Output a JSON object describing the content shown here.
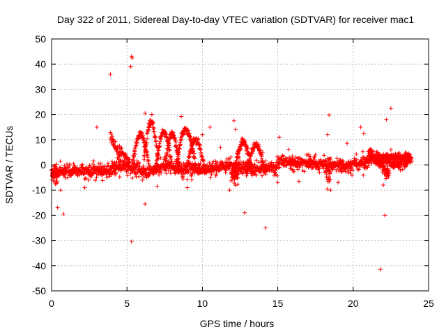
{
  "chart_data": {
    "type": "scatter",
    "title": "Day 322 of 2011, Sidereal Day-to-day VTEC variation (SDTVAR) for receiver mac1",
    "xlabel": "GPS time / hours",
    "ylabel": "SDTVAR / TECUs",
    "xlim": [
      0,
      25
    ],
    "ylim": [
      -50,
      50
    ],
    "xticks": [
      0,
      5,
      10,
      15,
      20,
      25
    ],
    "yticks": [
      -50,
      -40,
      -30,
      -20,
      -10,
      0,
      10,
      20,
      30,
      40,
      50
    ],
    "grid": true,
    "marker": "plus",
    "color": "#ff0000",
    "outlier_points": [
      [
        5.3,
        43
      ],
      [
        5.35,
        42.5
      ],
      [
        5.25,
        39
      ],
      [
        3.9,
        36
      ],
      [
        3.0,
        15
      ],
      [
        6.2,
        20.5
      ],
      [
        6.65,
        20
      ],
      [
        8.6,
        19.2
      ],
      [
        10.5,
        15
      ],
      [
        12.1,
        17.5
      ],
      [
        12.2,
        14
      ],
      [
        15.1,
        11
      ],
      [
        16.4,
        -6.5
      ],
      [
        18.4,
        19.8
      ],
      [
        18.3,
        12
      ],
      [
        20.5,
        15
      ],
      [
        20.7,
        12.5
      ],
      [
        22.5,
        22.5
      ],
      [
        22.2,
        18
      ],
      [
        22.5,
        6
      ],
      [
        0.4,
        -17
      ],
      [
        0.8,
        -19.5
      ],
      [
        5.3,
        -30.5
      ],
      [
        6.2,
        -15.5
      ],
      [
        12.8,
        -19
      ],
      [
        14.2,
        -25
      ],
      [
        21.8,
        -41.5
      ],
      [
        22.1,
        -20
      ],
      [
        22.0,
        -8
      ],
      [
        0.6,
        -10
      ],
      [
        7.0,
        -8.5
      ],
      [
        11.8,
        -10
      ],
      [
        9.0,
        -9
      ],
      [
        18.5,
        -10
      ],
      [
        19.0,
        -7
      ],
      [
        2.2,
        -9
      ],
      [
        15.0,
        -7
      ],
      [
        17.5,
        4
      ],
      [
        19.6,
        8.5
      ],
      [
        10.0,
        12
      ],
      [
        11.2,
        7
      ],
      [
        14.0,
        5
      ]
    ]
  }
}
